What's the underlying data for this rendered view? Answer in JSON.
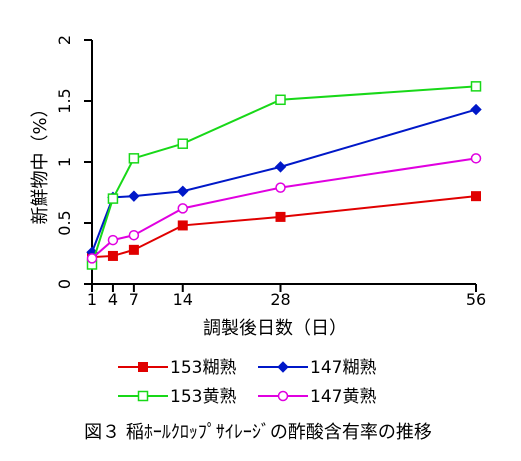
{
  "chart_data": {
    "type": "line",
    "xlabel": "調製後日数（日）",
    "ylabel": "新鮮物中（%）",
    "caption": "図３ 稲ﾎｰﾙｸﾛｯﾌﾟｻｲﾚｰｼﾞの酢酸含有率の推移",
    "x_ticks": [
      "1",
      "4",
      "7",
      "14",
      "28",
      "56"
    ],
    "y_ticks": [
      "0",
      "0.5",
      "1",
      "1.5",
      "2"
    ],
    "xlim": [
      1,
      56
    ],
    "ylim": [
      0,
      2
    ],
    "x_scale": "ordinal",
    "x": [
      1,
      4,
      7,
      14,
      28,
      56
    ],
    "grid": false,
    "legend_position": "bottom",
    "series": [
      {
        "name": "153糊熟",
        "color": "#e00000",
        "marker": "filled-square",
        "values": [
          0.22,
          0.23,
          0.28,
          0.48,
          0.55,
          0.72
        ]
      },
      {
        "name": "147糊熟",
        "color": "#0018c8",
        "marker": "filled-diamond",
        "values": [
          0.26,
          0.71,
          0.72,
          0.76,
          0.96,
          1.43
        ]
      },
      {
        "name": "153黄熟",
        "color": "#18d818",
        "marker": "open-square",
        "values": [
          0.16,
          0.7,
          1.03,
          1.15,
          1.51,
          1.62
        ]
      },
      {
        "name": "147黄熟",
        "color": "#e000e0",
        "marker": "open-circle",
        "values": [
          0.21,
          0.36,
          0.4,
          0.62,
          0.79,
          1.03
        ]
      }
    ]
  }
}
